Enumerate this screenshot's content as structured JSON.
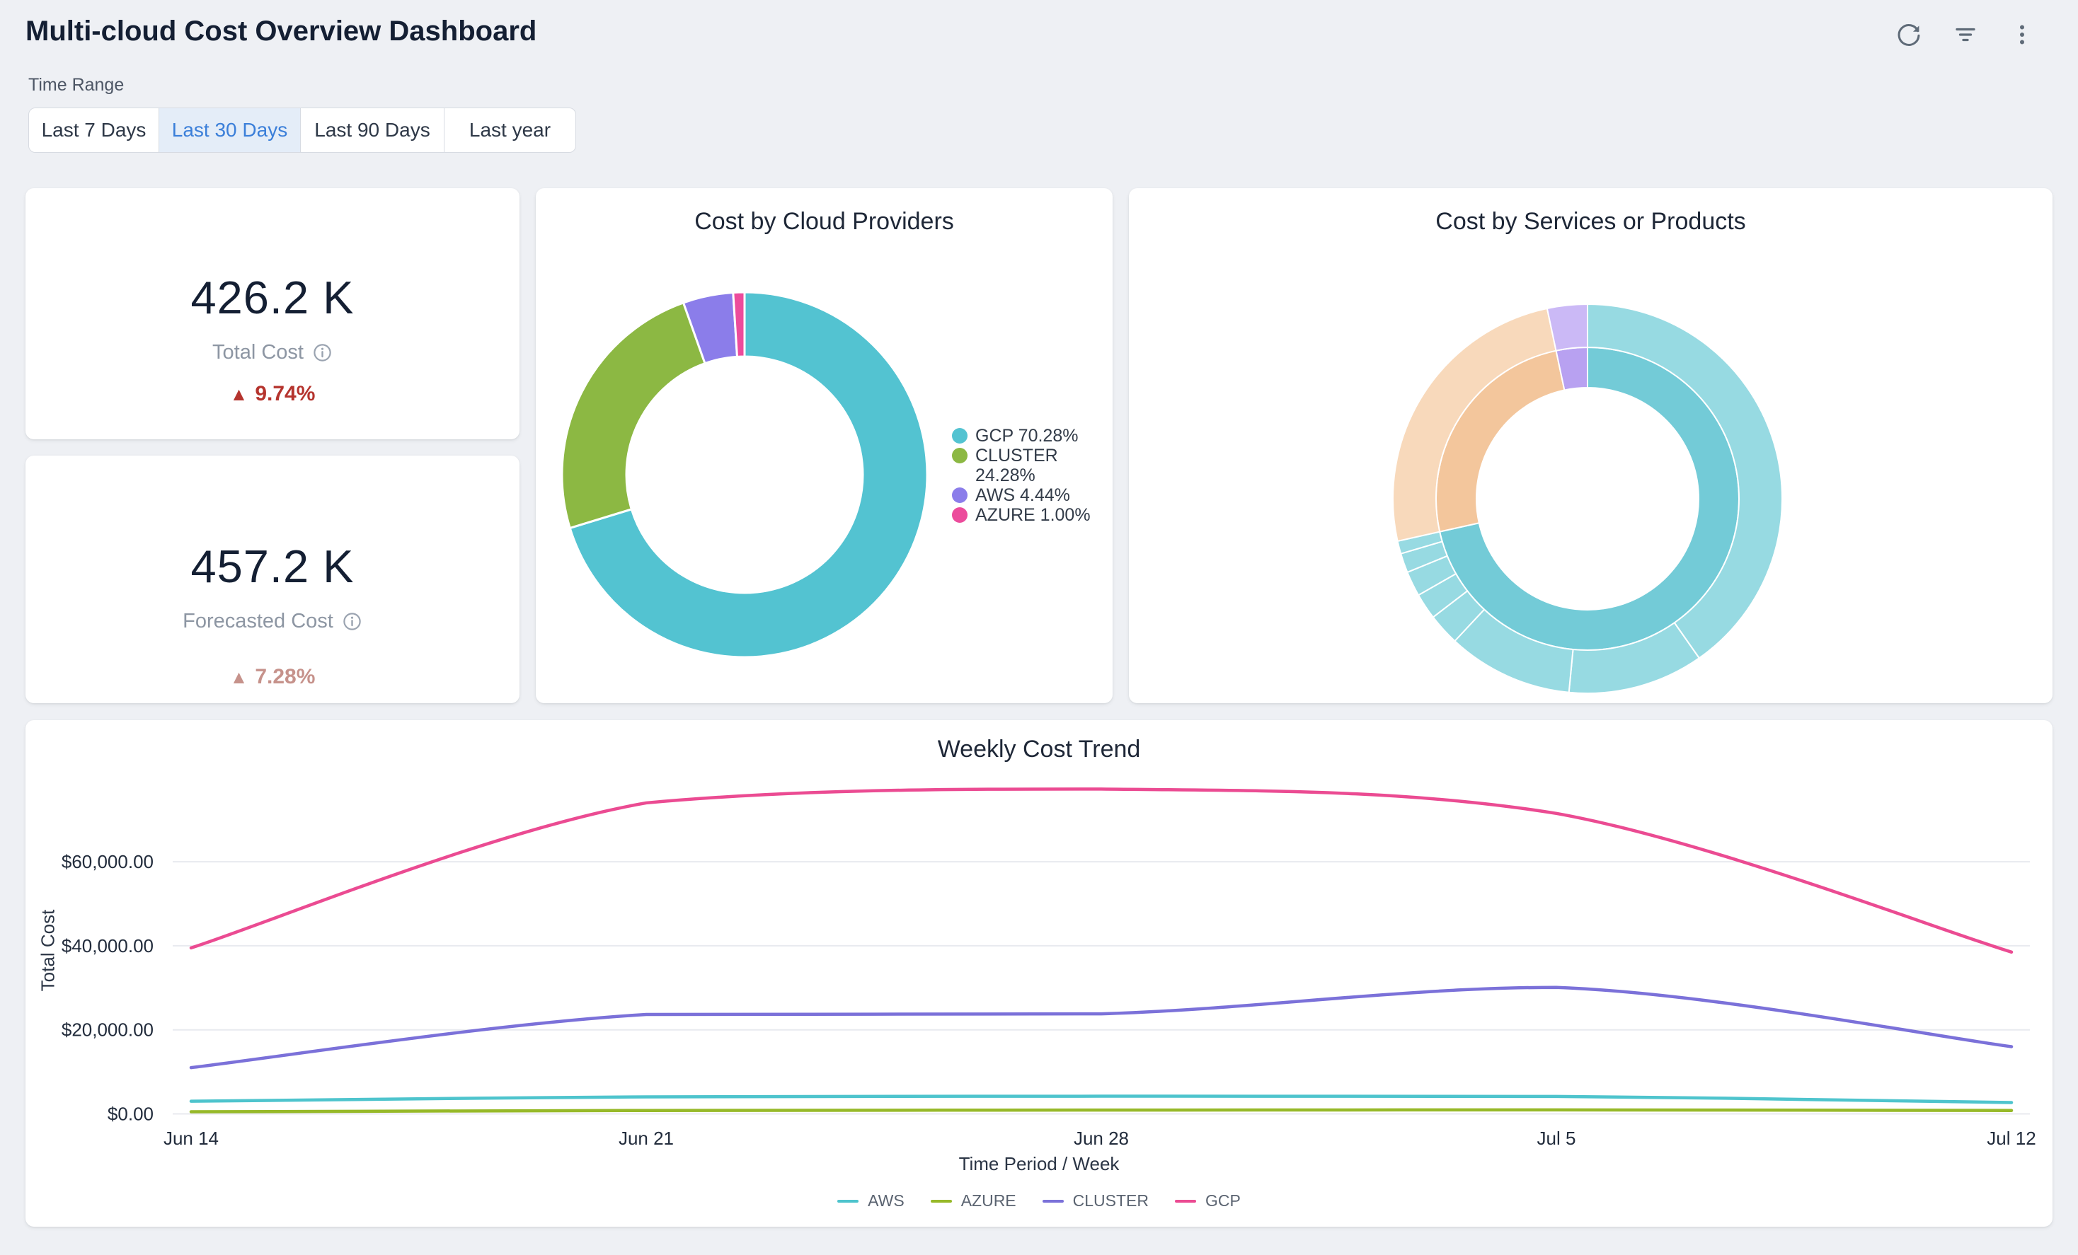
{
  "page": {
    "title": "Multi-cloud Cost Overview Dashboard",
    "background": "#eef0f4"
  },
  "header": {
    "actions": [
      {
        "name": "refresh-icon"
      },
      {
        "name": "filter-icon"
      },
      {
        "name": "more-icon"
      }
    ]
  },
  "time_range": {
    "label": "Time Range",
    "options": [
      {
        "label": "Last 7 Days",
        "active": false
      },
      {
        "label": "Last 30 Days",
        "active": true
      },
      {
        "label": "Last 90 Days",
        "active": false
      },
      {
        "label": "Last year",
        "active": false
      }
    ]
  },
  "stats": [
    {
      "value": "426.2 K",
      "label": "Total Cost",
      "delta": "9.74%",
      "direction": "up",
      "delta_color": "#b5342e"
    },
    {
      "value": "457.2 K",
      "label": "Forecasted Cost",
      "delta": "7.28%",
      "direction": "up",
      "delta_color": "#c6928b"
    }
  ],
  "chart_data": [
    {
      "type": "pie",
      "title": "Cost by Cloud Providers",
      "legend_position": "right",
      "series": [
        {
          "name": "GCP",
          "value": 70.28,
          "color": "#53c3d1",
          "legend": "GCP 70.28%"
        },
        {
          "name": "CLUSTER",
          "value": 24.28,
          "color": "#8cb843",
          "legend": "CLUSTER 24.28%"
        },
        {
          "name": "AWS",
          "value": 4.44,
          "color": "#8b7dea",
          "legend": "AWS 4.44%"
        },
        {
          "name": "AZURE",
          "value": 1.0,
          "color": "#ec4c9c",
          "legend": "AZURE 1.00%"
        }
      ]
    },
    {
      "type": "sunburst",
      "title": "Cost by Services or Products",
      "rings": [
        "providers",
        "services"
      ],
      "data": [
        {
          "name": "GCP",
          "inner_color": "#73cbd7",
          "outer_color": "#97dae2",
          "children": [
            40.28,
            11.25,
            10.42,
            2.64,
            2.17,
            2.08,
            1.61,
            1.06
          ]
        },
        {
          "name": "CLUSTER",
          "inner_color": "#f3c69c",
          "outer_color": "#f8d9bb",
          "children": [
            25.17
          ]
        },
        {
          "name": "AWS",
          "inner_color": "#b8a1f1",
          "outer_color": "#cbb9f6",
          "children": [
            3.33
          ]
        }
      ]
    },
    {
      "type": "line",
      "title": "Weekly Cost Trend",
      "xlabel": "Time Period / Week",
      "ylabel": "Total Cost",
      "x": [
        "Jun 14",
        "Jun 21",
        "Jun 28",
        "Jul 5",
        "Jul 12"
      ],
      "y_ticks": [
        {
          "value": 0,
          "label": "$0.00"
        },
        {
          "value": 20000,
          "label": "$20,000.00"
        },
        {
          "value": 40000,
          "label": "$40,000.00"
        },
        {
          "value": 60000,
          "label": "$60,000.00"
        }
      ],
      "series": [
        {
          "name": "AWS",
          "color": "#4ec4cd",
          "values": [
            3000,
            4050,
            4200,
            4150,
            2700
          ]
        },
        {
          "name": "AZURE",
          "color": "#97b929",
          "values": [
            500,
            800,
            900,
            950,
            800
          ]
        },
        {
          "name": "CLUSTER",
          "color": "#7b71d9",
          "values": [
            11000,
            23650,
            23800,
            30100,
            16000
          ]
        },
        {
          "name": "GCP",
          "color": "#eb4b92",
          "values": [
            39500,
            74000,
            77300,
            71500,
            38500
          ]
        }
      ]
    }
  ]
}
